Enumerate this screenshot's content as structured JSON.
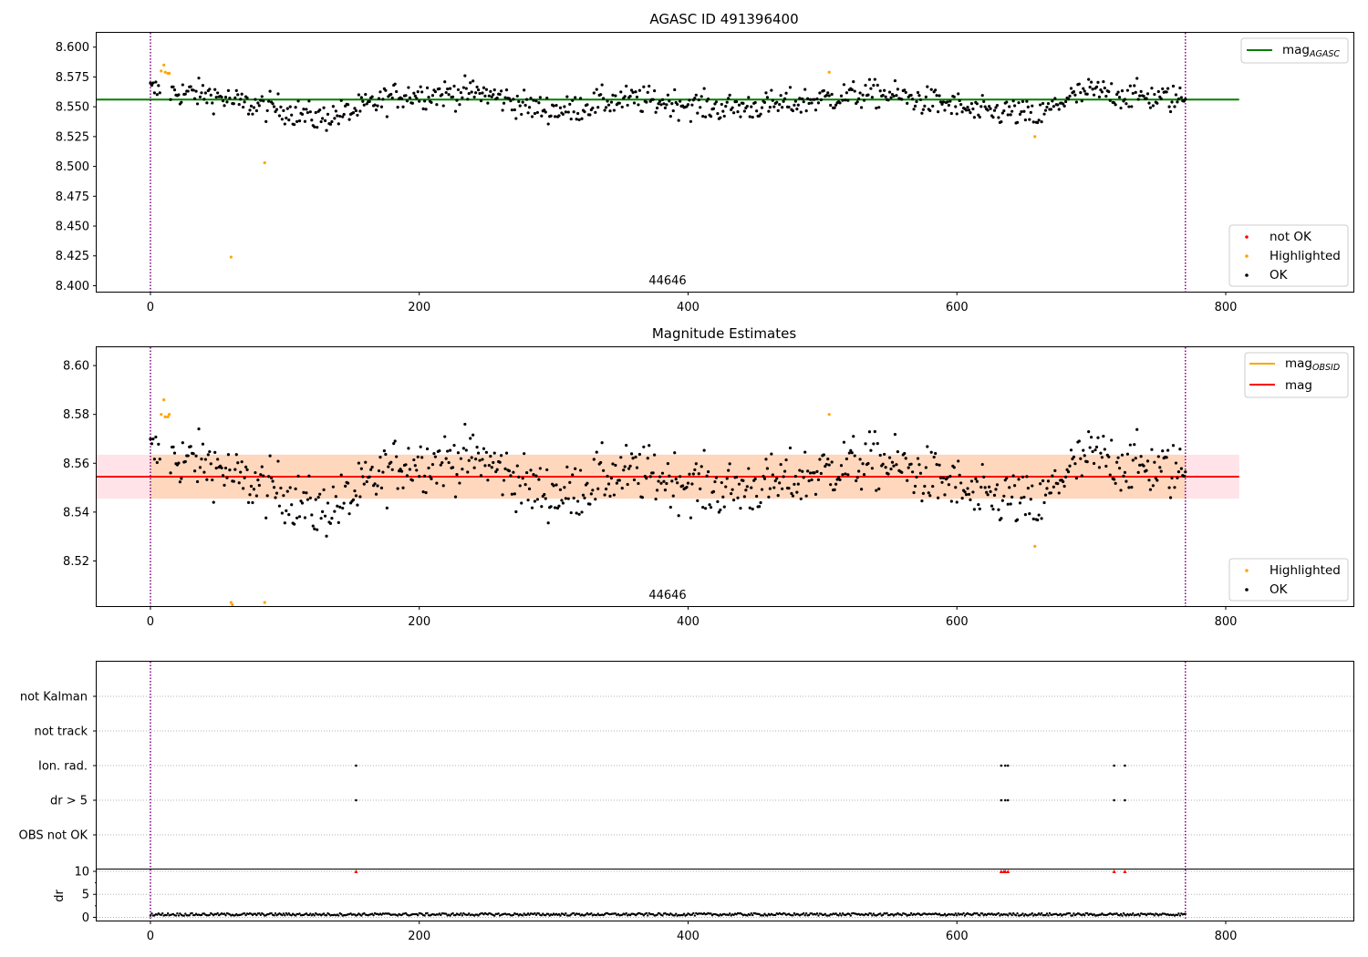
{
  "colors": {
    "ok": "#000000",
    "highlighted": "#ffa500",
    "not_ok": "#ff0000",
    "agasc_line": "#008000",
    "obsid_line": "#ffa500",
    "mag_line": "#ff0000",
    "band_outer": "#ffc0cb",
    "band_inner": "#ffcfa0",
    "vline": "#800080",
    "grid": "#b0b0b0"
  },
  "chart_data": [
    {
      "type": "scatter",
      "title": "AGASC ID 491396400",
      "xlabel": "",
      "ylabel": "",
      "xlim": [
        -40,
        895
      ],
      "ylim": [
        8.395,
        8.612
      ],
      "xticks": [
        "0",
        "200",
        "400",
        "600",
        "800"
      ],
      "yticks": [
        "8.400",
        "8.425",
        "8.450",
        "8.475",
        "8.500",
        "8.525",
        "8.550",
        "8.575",
        "8.600"
      ],
      "vlines": [
        0,
        770
      ],
      "obsid_label": "44646",
      "lines": [
        {
          "name": "mag",
          "subscript": "AGASC",
          "y": 8.556,
          "x": [
            -40,
            810
          ]
        }
      ],
      "legend_lines": [
        {
          "name": "mag",
          "subscript": "AGASC"
        }
      ],
      "legend_points": [
        "not OK",
        "Highlighted",
        "OK"
      ],
      "highlighted_points": [
        [
          8,
          8.58
        ],
        [
          10,
          8.585
        ],
        [
          11,
          8.579
        ],
        [
          13,
          8.578
        ],
        [
          14,
          8.578
        ],
        [
          60,
          8.424
        ],
        [
          85,
          8.503
        ],
        [
          505,
          8.579
        ],
        [
          658,
          8.525
        ]
      ],
      "not_ok_points": []
    },
    {
      "type": "scatter",
      "title": "Magnitude Estimates",
      "xlabel": "",
      "ylabel": "",
      "xlim": [
        -40,
        895
      ],
      "ylim": [
        8.5015,
        8.6075
      ],
      "xticks": [
        "0",
        "200",
        "400",
        "600",
        "800"
      ],
      "yticks": [
        "8.52",
        "8.54",
        "8.56",
        "8.58",
        "8.60"
      ],
      "vlines": [
        0,
        770
      ],
      "obsid_label": "44646",
      "lines": [
        {
          "name": "mag",
          "subscript": "OBSID",
          "y": 8.5545,
          "x": [
            0,
            770
          ]
        },
        {
          "name": "mag",
          "subscript": "",
          "y": 8.5545,
          "x": [
            -40,
            810
          ]
        }
      ],
      "bands": [
        {
          "y0": 8.5455,
          "y1": 8.5635,
          "x": [
            -40,
            810
          ],
          "kind": "outer"
        },
        {
          "y0": 8.5455,
          "y1": 8.5635,
          "x": [
            0,
            770
          ],
          "kind": "inner"
        }
      ],
      "legend_lines": [
        {
          "name": "mag",
          "subscript": "OBSID"
        },
        {
          "name": "mag",
          "subscript": ""
        }
      ],
      "legend_points": [
        "Highlighted",
        "OK"
      ],
      "highlighted_points": [
        [
          8,
          8.58
        ],
        [
          10,
          8.586
        ],
        [
          11,
          8.579
        ],
        [
          13,
          8.579
        ],
        [
          14,
          8.58
        ],
        [
          60,
          8.503
        ],
        [
          61,
          8.502
        ],
        [
          85,
          8.503
        ],
        [
          505,
          8.58
        ],
        [
          658,
          8.526
        ]
      ]
    },
    {
      "type": "scatter",
      "title": "",
      "xlim": [
        -40,
        895
      ],
      "categories": [
        "not Kalman",
        "not track",
        "Ion. rad.",
        "dr > 5",
        "OBS not OK"
      ],
      "flag_points": {
        "not Kalman": [],
        "not track": [],
        "Ion. rad.": [
          153,
          633,
          636,
          638,
          717,
          725
        ],
        "dr > 5": [
          153,
          633,
          636,
          638,
          717,
          725
        ],
        "OBS not OK": []
      },
      "xticks": [
        "0",
        "200",
        "400",
        "600",
        "800"
      ],
      "vlines": [
        0,
        770
      ]
    },
    {
      "type": "scatter",
      "title": "",
      "xlabel": "",
      "ylabel": "dr",
      "xlim": [
        -40,
        895
      ],
      "ylim": [
        -0.7,
        10.4
      ],
      "yticks": [
        "0",
        "5",
        "10"
      ],
      "xticks": [
        "0",
        "200",
        "400",
        "600",
        "800"
      ],
      "vlines": [
        0,
        770
      ],
      "clipped_points_x": [
        153,
        633,
        635,
        636,
        638,
        717,
        725
      ]
    }
  ]
}
